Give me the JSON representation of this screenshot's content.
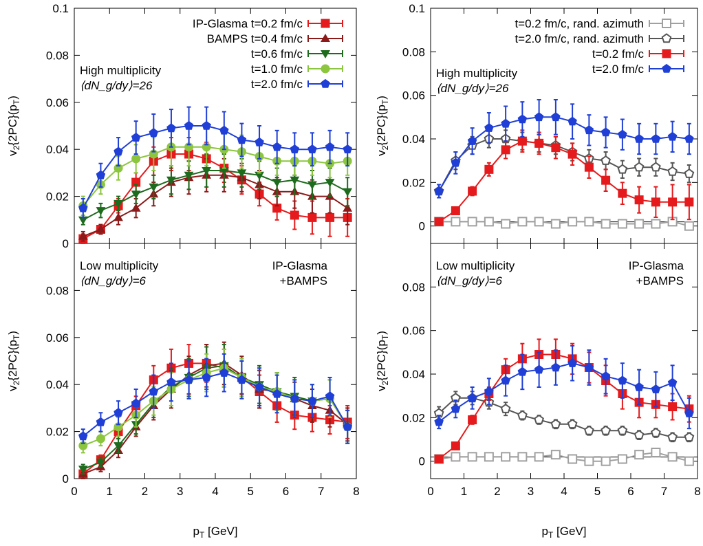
{
  "figure": {
    "x_axis_label": "p_T [GeV]",
    "y_axis_label": "v_2{2PC}(p_T)",
    "panel_text": {
      "high_mult_line1": "High multiplicity",
      "high_mult_line2": "⟨dN_g/dy⟩=26",
      "low_mult_line1": "Low multiplicity",
      "low_mult_line2": "⟨dN_g/dy⟩=6",
      "model_line1": "IP-Glasma",
      "model_line2": "+BAMPS"
    }
  },
  "chart_data": [
    {
      "type": "line",
      "panel": "top-left",
      "xlim": [
        0,
        8
      ],
      "ylim": [
        0,
        0.1
      ],
      "x_ticks": [
        "0",
        "1",
        "2",
        "3",
        "4",
        "5",
        "6",
        "7",
        "8"
      ],
      "y_ticks": [
        "0",
        "0.02",
        "0.04",
        "0.06",
        "0.08",
        "0.1"
      ],
      "annotations": [
        "High multiplicity",
        "⟨dN_g/dy⟩=26"
      ],
      "legend": {
        "position": "top-right",
        "entries": [
          {
            "label": "IP-Glasma t=0.2 fm/c",
            "color": "#e41a1c",
            "marker": "square"
          },
          {
            "label": "BAMPS t=0.4 fm/c",
            "color": "#8b1a1a",
            "marker": "triangle-up"
          },
          {
            "label": "t=0.6 fm/c",
            "color": "#1e6b1e",
            "marker": "triangle-down"
          },
          {
            "label": "t=1.0 fm/c",
            "color": "#8cc63f",
            "marker": "circle"
          },
          {
            "label": "t=2.0 fm/c",
            "color": "#1f3fd6",
            "marker": "pentagon"
          }
        ]
      },
      "x": [
        0.25,
        0.75,
        1.25,
        1.75,
        2.25,
        2.75,
        3.25,
        3.75,
        4.25,
        4.75,
        5.25,
        5.75,
        6.25,
        6.75,
        7.25,
        7.75
      ],
      "series": [
        {
          "name": "IP-Glasma t=0.2 fm/c",
          "color": "#e41a1c",
          "marker": "square",
          "values": [
            0.002,
            0.006,
            0.016,
            0.026,
            0.035,
            0.038,
            0.038,
            0.036,
            0.032,
            0.027,
            0.021,
            0.015,
            0.012,
            0.011,
            0.011,
            0.011
          ],
          "errors": [
            0.002,
            0.002,
            0.003,
            0.004,
            0.006,
            0.007,
            0.007,
            0.007,
            0.006,
            0.006,
            0.005,
            0.005,
            0.006,
            0.007,
            0.008,
            0.008
          ]
        },
        {
          "name": "BAMPS t=0.4 fm/c",
          "color": "#8b1a1a",
          "marker": "triangle-up",
          "values": [
            0.003,
            0.006,
            0.011,
            0.015,
            0.021,
            0.026,
            0.028,
            0.029,
            0.029,
            0.028,
            0.025,
            0.022,
            0.022,
            0.02,
            0.02,
            0.015
          ],
          "errors": [
            0.002,
            0.002,
            0.003,
            0.004,
            0.005,
            0.006,
            0.007,
            0.007,
            0.007,
            0.006,
            0.006,
            0.006,
            0.007,
            0.007,
            0.007,
            0.007
          ]
        },
        {
          "name": "t=0.6 fm/c",
          "color": "#1e6b1e",
          "marker": "triangle-down",
          "values": [
            0.01,
            0.014,
            0.017,
            0.021,
            0.024,
            0.027,
            0.029,
            0.031,
            0.031,
            0.03,
            0.029,
            0.026,
            0.027,
            0.025,
            0.026,
            0.022
          ],
          "errors": [
            0.002,
            0.003,
            0.003,
            0.004,
            0.005,
            0.006,
            0.006,
            0.007,
            0.007,
            0.006,
            0.006,
            0.006,
            0.006,
            0.006,
            0.006,
            0.006
          ]
        },
        {
          "name": "t=1.0 fm/c",
          "color": "#8cc63f",
          "marker": "circle",
          "values": [
            0.016,
            0.025,
            0.032,
            0.036,
            0.038,
            0.041,
            0.041,
            0.041,
            0.04,
            0.039,
            0.037,
            0.035,
            0.035,
            0.035,
            0.034,
            0.035
          ],
          "errors": [
            0.004,
            0.004,
            0.005,
            0.006,
            0.007,
            0.008,
            0.008,
            0.008,
            0.008,
            0.007,
            0.007,
            0.006,
            0.006,
            0.006,
            0.006,
            0.006
          ]
        },
        {
          "name": "t=2.0 fm/c",
          "color": "#1f3fd6",
          "marker": "pentagon",
          "values": [
            0.015,
            0.029,
            0.039,
            0.045,
            0.047,
            0.049,
            0.05,
            0.05,
            0.048,
            0.044,
            0.043,
            0.041,
            0.04,
            0.04,
            0.041,
            0.04
          ],
          "errors": [
            0.004,
            0.005,
            0.006,
            0.007,
            0.008,
            0.008,
            0.008,
            0.008,
            0.008,
            0.007,
            0.007,
            0.007,
            0.007,
            0.007,
            0.007,
            0.007
          ]
        }
      ]
    },
    {
      "type": "line",
      "panel": "top-right",
      "xlim": [
        0,
        8
      ],
      "ylim": [
        -0.008,
        0.1
      ],
      "x_ticks": [
        "0",
        "1",
        "2",
        "3",
        "4",
        "5",
        "6",
        "7",
        "8"
      ],
      "y_ticks": [
        "0",
        "0.02",
        "0.04",
        "0.06",
        "0.08",
        "0.1"
      ],
      "annotations": [
        "High multiplicity",
        "⟨dN_g/dy⟩=26"
      ],
      "legend": {
        "position": "top-right",
        "entries": [
          {
            "label": "t=0.2 fm/c, rand. azimuth",
            "color": "#a0a0a0",
            "marker": "open-square"
          },
          {
            "label": "t=2.0 fm/c, rand. azimuth",
            "color": "#555555",
            "marker": "open-pentagon"
          },
          {
            "label": "t=0.2 fm/c",
            "color": "#e41a1c",
            "marker": "square"
          },
          {
            "label": "t=2.0 fm/c",
            "color": "#1f3fd6",
            "marker": "pentagon"
          }
        ]
      },
      "x": [
        0.25,
        0.75,
        1.25,
        1.75,
        2.25,
        2.75,
        3.25,
        3.75,
        4.25,
        4.75,
        5.25,
        5.75,
        6.25,
        6.75,
        7.25,
        7.75
      ],
      "series": [
        {
          "name": "t=0.2 fm/c, rand. azimuth",
          "color": "#a0a0a0",
          "marker": "open-square",
          "values": [
            0.002,
            0.002,
            0.002,
            0.002,
            0.001,
            0.002,
            0.002,
            0.001,
            0.002,
            0.002,
            0.001,
            0.001,
            0.001,
            0.001,
            0.002,
            0.0
          ],
          "errors": [
            0.001,
            0.001,
            0.001,
            0.001,
            0.001,
            0.001,
            0.001,
            0.001,
            0.001,
            0.001,
            0.001,
            0.001,
            0.001,
            0.001,
            0.001,
            0.001
          ]
        },
        {
          "name": "t=2.0 fm/c, rand. azimuth",
          "color": "#555555",
          "marker": "open-pentagon",
          "values": [
            0.016,
            0.03,
            0.037,
            0.04,
            0.04,
            0.039,
            0.038,
            0.037,
            0.034,
            0.031,
            0.03,
            0.026,
            0.027,
            0.027,
            0.025,
            0.024
          ],
          "errors": [
            0.003,
            0.004,
            0.004,
            0.004,
            0.004,
            0.004,
            0.004,
            0.004,
            0.004,
            0.004,
            0.004,
            0.004,
            0.004,
            0.004,
            0.004,
            0.004
          ]
        },
        {
          "name": "t=0.2 fm/c",
          "color": "#e41a1c",
          "marker": "square",
          "values": [
            0.002,
            0.007,
            0.016,
            0.026,
            0.035,
            0.039,
            0.038,
            0.036,
            0.033,
            0.027,
            0.021,
            0.015,
            0.012,
            0.011,
            0.011,
            0.011
          ],
          "errors": [
            0.001,
            0.001,
            0.002,
            0.003,
            0.004,
            0.005,
            0.005,
            0.005,
            0.005,
            0.005,
            0.005,
            0.005,
            0.006,
            0.007,
            0.008,
            0.008
          ]
        },
        {
          "name": "t=2.0 fm/c",
          "color": "#1f3fd6",
          "marker": "pentagon",
          "values": [
            0.016,
            0.029,
            0.039,
            0.045,
            0.047,
            0.049,
            0.05,
            0.05,
            0.048,
            0.044,
            0.043,
            0.042,
            0.04,
            0.04,
            0.041,
            0.04
          ],
          "errors": [
            0.003,
            0.005,
            0.006,
            0.007,
            0.008,
            0.008,
            0.008,
            0.008,
            0.008,
            0.007,
            0.007,
            0.007,
            0.007,
            0.007,
            0.007,
            0.007
          ]
        }
      ]
    },
    {
      "type": "line",
      "panel": "bottom-left",
      "xlim": [
        0,
        8
      ],
      "ylim": [
        0,
        0.1
      ],
      "x_ticks": [
        "0",
        "1",
        "2",
        "3",
        "4",
        "5",
        "6",
        "7",
        "8"
      ],
      "y_ticks": [
        "0",
        "0.02",
        "0.04",
        "0.06",
        "0.08"
      ],
      "annotations": [
        "Low multiplicity",
        "⟨dN_g/dy⟩=6",
        "IP-Glasma",
        "+BAMPS"
      ],
      "x": [
        0.25,
        0.75,
        1.25,
        1.75,
        2.25,
        2.75,
        3.25,
        3.75,
        4.25,
        4.75,
        5.25,
        5.75,
        6.25,
        6.75,
        7.25,
        7.75
      ],
      "series": [
        {
          "color": "#e41a1c",
          "marker": "square",
          "values": [
            0.002,
            0.008,
            0.02,
            0.031,
            0.042,
            0.047,
            0.049,
            0.049,
            0.047,
            0.043,
            0.037,
            0.031,
            0.027,
            0.026,
            0.025,
            0.024
          ],
          "errors": [
            0.002,
            0.002,
            0.003,
            0.004,
            0.006,
            0.008,
            0.008,
            0.008,
            0.008,
            0.007,
            0.007,
            0.007,
            0.006,
            0.006,
            0.006,
            0.007
          ]
        },
        {
          "color": "#8b1a1a",
          "marker": "triangle-up",
          "values": [
            0.002,
            0.005,
            0.012,
            0.022,
            0.031,
            0.038,
            0.044,
            0.048,
            0.049,
            0.044,
            0.038,
            0.037,
            0.034,
            0.031,
            0.029,
            0.023
          ],
          "errors": [
            0.002,
            0.002,
            0.003,
            0.004,
            0.006,
            0.008,
            0.008,
            0.009,
            0.009,
            0.008,
            0.008,
            0.008,
            0.007,
            0.007,
            0.007,
            0.007
          ]
        },
        {
          "color": "#1e6b1e",
          "marker": "triangle-down",
          "values": [
            0.004,
            0.007,
            0.014,
            0.023,
            0.032,
            0.039,
            0.043,
            0.047,
            0.048,
            0.043,
            0.04,
            0.037,
            0.035,
            0.033,
            0.034,
            0.022
          ],
          "errors": [
            0.002,
            0.002,
            0.003,
            0.004,
            0.006,
            0.008,
            0.008,
            0.009,
            0.009,
            0.008,
            0.008,
            0.008,
            0.008,
            0.007,
            0.008,
            0.007
          ]
        },
        {
          "color": "#8cc63f",
          "marker": "circle",
          "values": [
            0.014,
            0.017,
            0.022,
            0.027,
            0.033,
            0.038,
            0.042,
            0.045,
            0.047,
            0.043,
            0.039,
            0.037,
            0.034,
            0.033,
            0.034,
            0.022
          ],
          "errors": [
            0.003,
            0.003,
            0.004,
            0.005,
            0.006,
            0.007,
            0.008,
            0.008,
            0.008,
            0.008,
            0.008,
            0.008,
            0.008,
            0.007,
            0.008,
            0.007
          ]
        },
        {
          "color": "#1f3fd6",
          "marker": "pentagon",
          "values": [
            0.018,
            0.024,
            0.028,
            0.032,
            0.037,
            0.041,
            0.042,
            0.043,
            0.045,
            0.042,
            0.039,
            0.036,
            0.034,
            0.033,
            0.035,
            0.022
          ],
          "errors": [
            0.003,
            0.004,
            0.005,
            0.006,
            0.007,
            0.008,
            0.008,
            0.008,
            0.008,
            0.008,
            0.008,
            0.008,
            0.008,
            0.007,
            0.008,
            0.007
          ]
        }
      ]
    },
    {
      "type": "line",
      "panel": "bottom-right",
      "xlim": [
        0,
        8
      ],
      "ylim": [
        -0.008,
        0.1
      ],
      "x_ticks": [
        "0",
        "1",
        "2",
        "3",
        "4",
        "5",
        "6",
        "7",
        "8"
      ],
      "y_ticks": [
        "0",
        "0.02",
        "0.04",
        "0.06",
        "0.08"
      ],
      "annotations": [
        "Low multiplicity",
        "⟨dN_g/dy⟩=6",
        "IP-Glasma",
        "+BAMPS"
      ],
      "x": [
        0.25,
        0.75,
        1.25,
        1.75,
        2.25,
        2.75,
        3.25,
        3.75,
        4.25,
        4.75,
        5.25,
        5.75,
        6.25,
        6.75,
        7.25,
        7.75
      ],
      "series": [
        {
          "color": "#a0a0a0",
          "marker": "open-square",
          "values": [
            0.001,
            0.002,
            0.002,
            0.002,
            0.002,
            0.002,
            0.002,
            0.003,
            0.001,
            0.0,
            0.0,
            0.001,
            0.003,
            0.004,
            0.002,
            0.0
          ],
          "errors": [
            0.001,
            0.001,
            0.001,
            0.001,
            0.001,
            0.001,
            0.001,
            0.001,
            0.001,
            0.001,
            0.001,
            0.001,
            0.001,
            0.001,
            0.001,
            0.001
          ]
        },
        {
          "color": "#555555",
          "marker": "open-pentagon",
          "values": [
            0.022,
            0.029,
            0.029,
            0.027,
            0.024,
            0.021,
            0.019,
            0.017,
            0.017,
            0.014,
            0.014,
            0.014,
            0.012,
            0.013,
            0.011,
            0.011
          ],
          "errors": [
            0.003,
            0.003,
            0.003,
            0.003,
            0.003,
            0.002,
            0.002,
            0.002,
            0.002,
            0.002,
            0.002,
            0.002,
            0.002,
            0.002,
            0.002,
            0.002
          ]
        },
        {
          "color": "#e41a1c",
          "marker": "square",
          "values": [
            0.001,
            0.007,
            0.019,
            0.031,
            0.042,
            0.047,
            0.049,
            0.049,
            0.047,
            0.043,
            0.037,
            0.031,
            0.027,
            0.026,
            0.025,
            0.024
          ],
          "errors": [
            0.001,
            0.001,
            0.002,
            0.003,
            0.005,
            0.007,
            0.007,
            0.007,
            0.007,
            0.007,
            0.007,
            0.007,
            0.007,
            0.006,
            0.006,
            0.006
          ]
        },
        {
          "color": "#1f3fd6",
          "marker": "pentagon",
          "values": [
            0.018,
            0.024,
            0.029,
            0.032,
            0.037,
            0.041,
            0.042,
            0.043,
            0.045,
            0.043,
            0.039,
            0.037,
            0.034,
            0.033,
            0.036,
            0.022
          ],
          "errors": [
            0.003,
            0.004,
            0.005,
            0.006,
            0.007,
            0.008,
            0.008,
            0.008,
            0.008,
            0.008,
            0.008,
            0.008,
            0.008,
            0.008,
            0.008,
            0.007
          ]
        }
      ]
    }
  ]
}
